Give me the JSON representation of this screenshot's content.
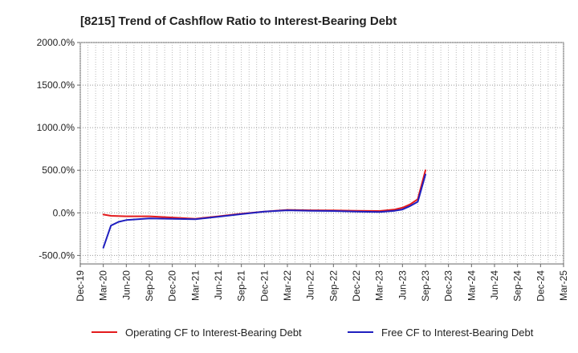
{
  "chart_data": {
    "type": "line",
    "title": "[8215]  Trend of Cashflow Ratio to Interest-Bearing Debt",
    "xlabel": "",
    "ylabel": "",
    "x_ticks": [
      "Dec-19",
      "Mar-20",
      "Jun-20",
      "Sep-20",
      "Dec-20",
      "Mar-21",
      "Jun-21",
      "Sep-21",
      "Dec-21",
      "Mar-22",
      "Jun-22",
      "Sep-22",
      "Dec-22",
      "Mar-23",
      "Jun-23",
      "Sep-23",
      "Dec-23",
      "Mar-24",
      "Jun-24",
      "Sep-24",
      "Dec-24",
      "Mar-25"
    ],
    "y_ticks": [
      "-500.0%",
      "0.0%",
      "500.0%",
      "1000.0%",
      "1500.0%",
      "2000.0%"
    ],
    "ylim": [
      -600,
      2000
    ],
    "grid": true,
    "legend_position": "bottom",
    "series": [
      {
        "name": "Operating CF to Interest-Bearing Debt",
        "color": "#e31a1c",
        "points": [
          [
            "Mar-20",
            -20
          ],
          [
            "Apr-20",
            -35
          ],
          [
            "Jun-20",
            -40
          ],
          [
            "Sep-20",
            -40
          ],
          [
            "Dec-20",
            -55
          ],
          [
            "Mar-21",
            -70
          ],
          [
            "Jun-21",
            -40
          ],
          [
            "Sep-21",
            -10
          ],
          [
            "Dec-21",
            15
          ],
          [
            "Mar-22",
            35
          ],
          [
            "Jun-22",
            30
          ],
          [
            "Sep-22",
            28
          ],
          [
            "Dec-22",
            25
          ],
          [
            "Mar-23",
            22
          ],
          [
            "May-23",
            40
          ],
          [
            "Jun-23",
            60
          ],
          [
            "Jul-23",
            100
          ],
          [
            "Aug-23",
            160
          ],
          [
            "Sep-23",
            500
          ]
        ]
      },
      {
        "name": "Free CF to Interest-Bearing Debt",
        "color": "#1f1fbf",
        "points": [
          [
            "Mar-20",
            -410
          ],
          [
            "Apr-20",
            -150
          ],
          [
            "May-20",
            -105
          ],
          [
            "Jun-20",
            -85
          ],
          [
            "Sep-20",
            -65
          ],
          [
            "Dec-20",
            -70
          ],
          [
            "Mar-21",
            -75
          ],
          [
            "Jun-21",
            -45
          ],
          [
            "Sep-21",
            -15
          ],
          [
            "Dec-21",
            15
          ],
          [
            "Mar-22",
            30
          ],
          [
            "Jun-22",
            25
          ],
          [
            "Sep-22",
            22
          ],
          [
            "Dec-22",
            15
          ],
          [
            "Mar-23",
            10
          ],
          [
            "May-23",
            25
          ],
          [
            "Jun-23",
            40
          ],
          [
            "Jul-23",
            80
          ],
          [
            "Aug-23",
            130
          ],
          [
            "Sep-23",
            450
          ]
        ]
      }
    ]
  }
}
